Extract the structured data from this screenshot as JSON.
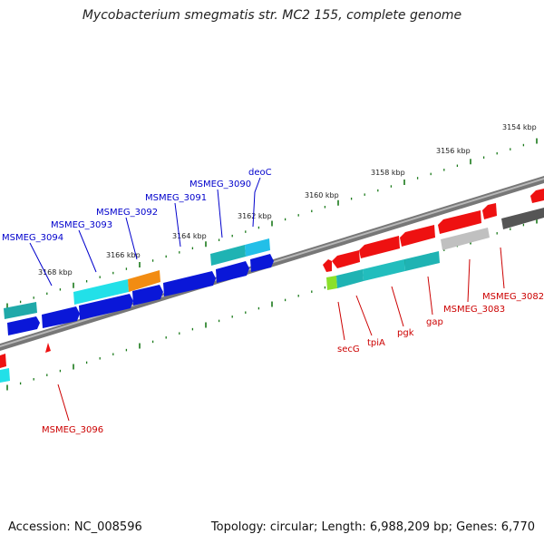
{
  "header": {
    "title": "Mycobacterium smegmatis str. MC2 155, complete genome"
  },
  "footer": {
    "accession": "Accession: NC_008596",
    "summary": "Topology: circular; Length: 6,988,209 bp; Genes: 6,770"
  },
  "colors": {
    "forward_label": "#0000cc",
    "reverse_label": "#cc0000",
    "tick": "#1a7a1a",
    "backbone": "#808080"
  },
  "scale": {
    "unit": "kbp",
    "tick_labels": [
      "3154 kbp",
      "3156 kbp",
      "3158 kbp",
      "3160 kbp",
      "3162 kbp",
      "3164 kbp",
      "3166 kbp",
      "3168 kbp"
    ]
  },
  "genes_forward": [
    {
      "name": "MSMEG_3094",
      "color": "blue"
    },
    {
      "name": "MSMEG_3093",
      "color": "cyan"
    },
    {
      "name": "MSMEG_3092",
      "color": "orange"
    },
    {
      "name": "MSMEG_3091",
      "color": "blue"
    },
    {
      "name": "MSMEG_3090",
      "color": "teal"
    },
    {
      "name": "deoC",
      "color": "sky"
    }
  ],
  "genes_reverse": [
    {
      "name": "MSMEG_3096",
      "color": "red"
    },
    {
      "name": "secG",
      "color": "lime"
    },
    {
      "name": "tpiA",
      "color": "teal"
    },
    {
      "name": "pgk",
      "color": "teal"
    },
    {
      "name": "gap",
      "color": "teal"
    },
    {
      "name": "MSMEG_3083",
      "color": "gray"
    },
    {
      "name": "MSMEG_3082",
      "color": "dark-gray"
    }
  ]
}
